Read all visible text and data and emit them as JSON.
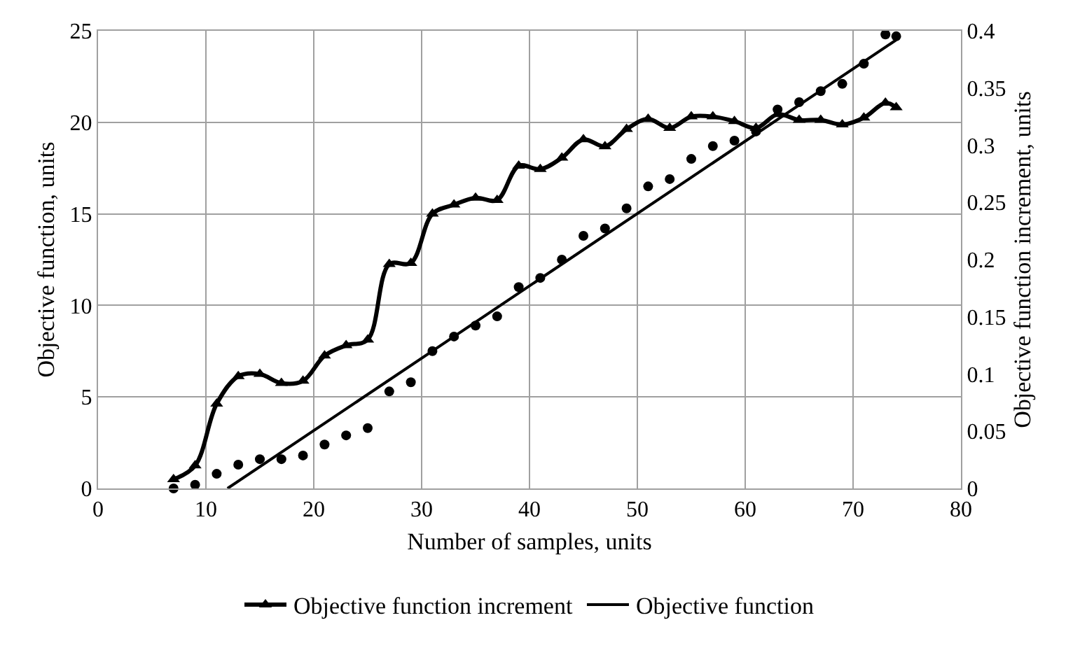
{
  "chart_data": {
    "type": "scatter",
    "xlabel": "Number of samples, units",
    "ylabel": "Objective function, units",
    "y2label": "Objective function increment, units",
    "xlim": [
      0,
      80
    ],
    "xticks": [
      0,
      10,
      20,
      30,
      40,
      50,
      60,
      70,
      80
    ],
    "ylim": [
      0,
      25
    ],
    "yticks": [
      0,
      5,
      10,
      15,
      20,
      25
    ],
    "y2lim": [
      0,
      0.4
    ],
    "y2ticks": [
      0,
      0.05,
      0.1,
      0.15,
      0.2,
      0.25,
      0.3,
      0.35,
      0.4
    ],
    "grid": true,
    "legend": "bottom",
    "series": [
      {
        "name": "Objective function increment",
        "type": "line",
        "axis": "y2",
        "marker": "triangle",
        "color": "#000000",
        "x": [
          7,
          9,
          11,
          13,
          15,
          17,
          19,
          21,
          23,
          25,
          27,
          29,
          31,
          33,
          35,
          37,
          39,
          41,
          43,
          45,
          47,
          49,
          51,
          53,
          55,
          57,
          59,
          61,
          63,
          65,
          67,
          69,
          71,
          73,
          74
        ],
        "values": [
          0.008,
          0.02,
          0.074,
          0.098,
          0.1,
          0.092,
          0.094,
          0.116,
          0.125,
          0.13,
          0.196,
          0.197,
          0.24,
          0.248,
          0.254,
          0.252,
          0.282,
          0.279,
          0.289,
          0.305,
          0.299,
          0.314,
          0.323,
          0.315,
          0.325,
          0.325,
          0.321,
          0.315,
          0.327,
          0.322,
          0.322,
          0.318,
          0.324,
          0.337,
          0.333
        ]
      },
      {
        "name": "Objective function",
        "type": "line",
        "marker": "none",
        "color": "#000000",
        "x": [
          12,
          74
        ],
        "values": [
          0,
          24.5
        ]
      },
      {
        "marker": "circle",
        "color": "#000000",
        "x": [
          7,
          9,
          11,
          13,
          15,
          17,
          19,
          21,
          23,
          25,
          27,
          29,
          31,
          33,
          35,
          37,
          39,
          41,
          43,
          45,
          47,
          49,
          51,
          53,
          55,
          57,
          59,
          61,
          63,
          65,
          67,
          69,
          71,
          73,
          74
        ],
        "values": [
          0,
          0.2,
          0.8,
          1.3,
          1.6,
          1.6,
          1.8,
          2.4,
          2.9,
          3.3,
          5.3,
          5.8,
          7.5,
          8.3,
          8.9,
          9.4,
          11.0,
          11.5,
          12.5,
          13.8,
          14.2,
          15.3,
          16.5,
          16.9,
          18.0,
          18.7,
          19.0,
          19.5,
          20.7,
          21.1,
          21.7,
          22.1,
          23.2,
          24.8,
          24.7
        ]
      }
    ]
  }
}
